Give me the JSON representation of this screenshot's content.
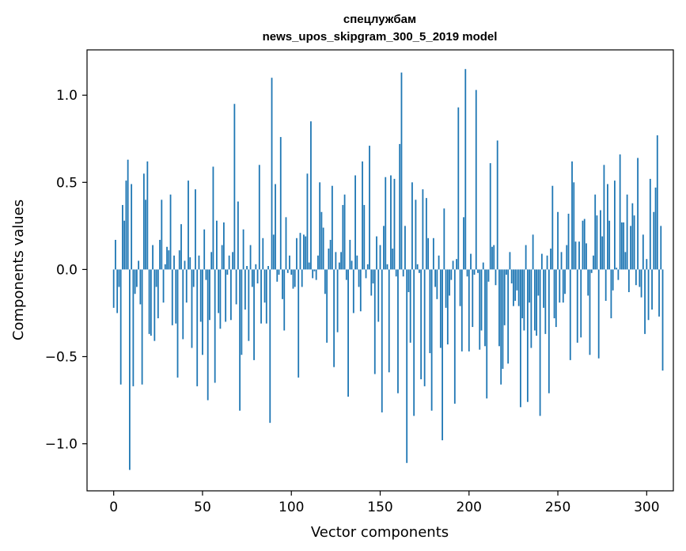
{
  "chart_data": {
    "type": "bar",
    "title": "спецлужбам",
    "subtitle": "news_upos_skipgram_300_5_2019 model",
    "xlabel": "Vector components",
    "ylabel": "Components values",
    "xlim": [
      -15,
      315
    ],
    "ylim": [
      -1.27,
      1.26
    ],
    "x_ticks": [
      0,
      50,
      100,
      150,
      200,
      250,
      300
    ],
    "x_tick_labels": [
      "0",
      "50",
      "100",
      "150",
      "200",
      "250",
      "300"
    ],
    "y_ticks": [
      -1.0,
      -0.5,
      0.0,
      0.5,
      1.0
    ],
    "y_tick_labels": [
      "−1.0",
      "−0.5",
      "0.0",
      "0.5",
      "1.0"
    ],
    "grid": false,
    "bar_color": "#1f77b4",
    "values": [
      -0.22,
      0.17,
      -0.25,
      -0.1,
      -0.66,
      0.37,
      0.28,
      0.51,
      0.63,
      -1.15,
      0.49,
      -0.67,
      -0.14,
      -0.1,
      0.05,
      -0.2,
      -0.66,
      0.55,
      0.4,
      0.62,
      -0.37,
      -0.38,
      0.14,
      -0.41,
      -0.1,
      -0.28,
      0.17,
      0.4,
      -0.19,
      0.03,
      0.13,
      0.11,
      0.43,
      -0.32,
      0.08,
      -0.31,
      -0.62,
      0.11,
      0.26,
      -0.4,
      0.05,
      -0.19,
      0.51,
      0.07,
      -0.45,
      -0.1,
      0.46,
      -0.67,
      0.08,
      -0.3,
      -0.49,
      0.23,
      -0.06,
      -0.75,
      -0.29,
      0.1,
      0.59,
      -0.65,
      0.28,
      -0.25,
      -0.34,
      0.14,
      0.27,
      -0.3,
      -0.03,
      0.08,
      -0.29,
      0.1,
      0.95,
      -0.2,
      0.39,
      -0.81,
      -0.49,
      0.23,
      -0.23,
      0.02,
      -0.41,
      0.14,
      -0.1,
      -0.52,
      0.03,
      -0.08,
      0.6,
      -0.31,
      0.18,
      -0.19,
      -0.31,
      0.02,
      -0.88,
      1.1,
      0.2,
      0.49,
      -0.07,
      -0.03,
      0.76,
      -0.17,
      -0.35,
      0.3,
      -0.02,
      0.08,
      -0.03,
      -0.11,
      -0.1,
      0.18,
      -0.62,
      0.21,
      -0.1,
      0.2,
      0.19,
      0.55,
      0.04,
      0.85,
      -0.05,
      -0.01,
      -0.06,
      0.08,
      0.5,
      0.33,
      0.24,
      -0.14,
      -0.42,
      0.12,
      0.17,
      0.48,
      -0.56,
      0.1,
      -0.36,
      0.04,
      0.1,
      0.37,
      0.43,
      -0.06,
      -0.73,
      0.17,
      0.05,
      -0.25,
      0.54,
      0.08,
      -0.1,
      -0.24,
      0.62,
      0.37,
      -0.05,
      0.03,
      0.71,
      -0.15,
      -0.08,
      -0.6,
      0.19,
      -0.3,
      0.14,
      -0.82,
      0.25,
      0.53,
      0.03,
      -0.59,
      0.54,
      0.12,
      0.52,
      -0.04,
      -0.71,
      0.72,
      1.13,
      -0.04,
      0.25,
      -1.11,
      -0.13,
      -0.42,
      0.5,
      -0.84,
      0.4,
      0.03,
      -0.02,
      -0.63,
      0.46,
      -0.67,
      0.41,
      0.18,
      -0.48,
      -0.81,
      0.18,
      -0.1,
      -0.17,
      0.08,
      -0.45,
      -0.98,
      0.35,
      -0.22,
      -0.43,
      -0.15,
      -0.06,
      0.05,
      -0.77,
      0.06,
      0.93,
      -0.21,
      -0.47,
      0.3,
      1.15,
      -0.04,
      -0.47,
      0.09,
      -0.33,
      -0.03,
      1.03,
      -0.02,
      -0.46,
      -0.35,
      0.04,
      -0.44,
      -0.74,
      -0.07,
      0.61,
      0.13,
      0.14,
      -0.09,
      0.74,
      -0.44,
      -0.66,
      -0.57,
      -0.32,
      -0.03,
      -0.54,
      0.1,
      -0.08,
      -0.21,
      -0.18,
      -0.12,
      -0.21,
      -0.79,
      -0.28,
      -0.35,
      0.14,
      -0.76,
      -0.19,
      -0.45,
      0.2,
      -0.35,
      -0.38,
      -0.15,
      -0.84,
      0.09,
      -0.22,
      -0.37,
      0.08,
      -0.71,
      0.12,
      0.48,
      -0.28,
      -0.33,
      0.33,
      -0.19,
      0.1,
      -0.19,
      -0.14,
      0.14,
      0.32,
      -0.52,
      0.62,
      0.5,
      0.16,
      -0.42,
      0.16,
      -0.39,
      0.28,
      0.29,
      0.15,
      -0.15,
      -0.49,
      -0.02,
      0.08,
      0.43,
      0.31,
      -0.51,
      0.34,
      0.19,
      0.6,
      -0.18,
      0.49,
      0.28,
      -0.28,
      -0.12,
      0.51,
      0.01,
      -0.06,
      0.66,
      0.27,
      0.27,
      0.1,
      0.43,
      -0.13,
      0.25,
      0.38,
      0.31,
      -0.09,
      0.64,
      -0.1,
      -0.16,
      0.2,
      -0.37,
      0.06,
      -0.29,
      0.52,
      -0.23,
      0.33,
      0.47,
      0.77,
      -0.27,
      0.25,
      -0.58
    ]
  }
}
